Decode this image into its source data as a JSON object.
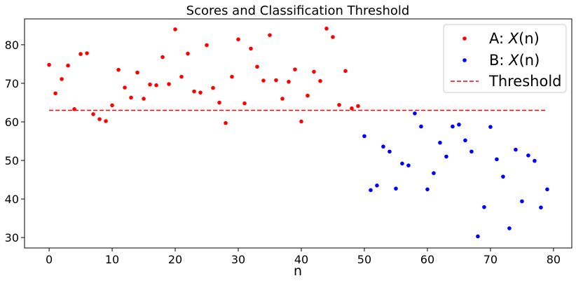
{
  "chart_data": {
    "type": "scatter",
    "title": "Scores and Classification Threshold",
    "xlabel": "n",
    "ylabel": "",
    "xlim": [
      -3.9,
      82.9
    ],
    "ylim": [
      27.3,
      86.7
    ],
    "xticks": [
      0,
      10,
      20,
      30,
      40,
      50,
      60,
      70,
      80
    ],
    "yticks": [
      30,
      40,
      50,
      60,
      70,
      80
    ],
    "grid": false,
    "legend_position": "top-right",
    "threshold": {
      "name": "Threshold",
      "value": 63.0,
      "x_start": 0,
      "x_end": 79,
      "color": "#ff0000",
      "style": "dashed"
    },
    "series": [
      {
        "name": "A: X(n)",
        "label_prefix": "A: ",
        "label_math": "X",
        "label_suffix": "(n)",
        "color": "#ff0000",
        "x": [
          0,
          1,
          2,
          3,
          4,
          5,
          6,
          7,
          8,
          9,
          10,
          11,
          12,
          13,
          14,
          15,
          16,
          17,
          18,
          19,
          20,
          21,
          22,
          23,
          24,
          25,
          26,
          27,
          28,
          29,
          30,
          31,
          32,
          33,
          34,
          35,
          36,
          37,
          38,
          39,
          40,
          41,
          42,
          43,
          44,
          45,
          46,
          47,
          48,
          49
        ],
        "values": [
          74.8,
          67.4,
          71.1,
          74.6,
          63.3,
          77.6,
          77.8,
          62.0,
          60.7,
          60.2,
          64.3,
          73.5,
          68.9,
          66.3,
          72.8,
          66.0,
          69.7,
          69.5,
          76.8,
          69.8,
          84.0,
          71.7,
          77.7,
          67.9,
          67.6,
          79.9,
          68.8,
          65.0,
          59.7,
          71.7,
          81.4,
          64.8,
          79.0,
          74.3,
          70.7,
          82.5,
          70.8,
          66.0,
          70.4,
          73.6,
          60.1,
          66.8,
          73.0,
          70.6,
          84.2,
          82.0,
          64.4,
          73.2,
          63.5,
          64.1
        ]
      },
      {
        "name": "B: X(n)",
        "label_prefix": "B: ",
        "label_math": "X",
        "label_suffix": "(n)",
        "color": "#0000ff",
        "x": [
          50,
          51,
          52,
          53,
          54,
          55,
          56,
          57,
          58,
          59,
          60,
          61,
          62,
          63,
          64,
          65,
          66,
          67,
          68,
          69,
          70,
          71,
          72,
          73,
          74,
          75,
          76,
          77,
          78,
          79
        ],
        "values": [
          56.3,
          42.3,
          43.5,
          53.6,
          52.3,
          42.7,
          49.2,
          48.7,
          62.2,
          58.8,
          42.5,
          46.7,
          54.6,
          51.0,
          58.8,
          59.3,
          55.2,
          52.3,
          30.3,
          37.9,
          58.7,
          50.3,
          45.8,
          32.4,
          52.8,
          39.4,
          51.3,
          49.9,
          37.8,
          42.5
        ]
      }
    ]
  }
}
